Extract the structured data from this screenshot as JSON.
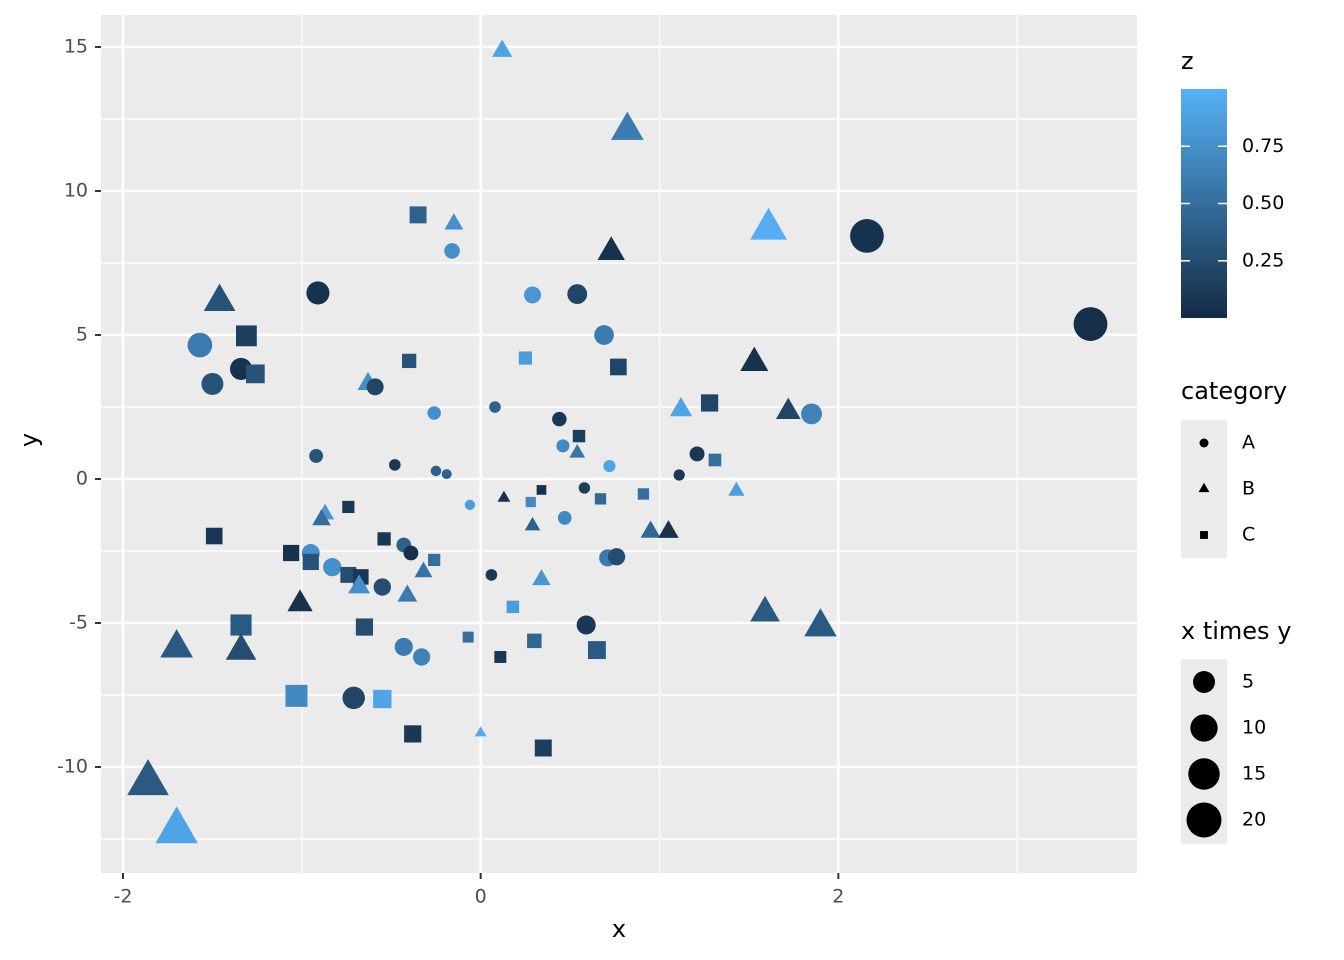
{
  "chart_data": {
    "type": "scatter",
    "xlabel": "x",
    "ylabel": "y",
    "xlim": [
      -2.123,
      3.67
    ],
    "ylim": [
      -13.68,
      16.11
    ],
    "xticks": [
      -2,
      0,
      2
    ],
    "yticks": [
      15,
      10,
      5,
      0,
      -5,
      -10
    ],
    "xminor": [
      -1,
      1,
      3
    ],
    "yminor": [
      12.5,
      7.5,
      2.5,
      -2.5,
      -7.5,
      -12.5
    ],
    "grid": true,
    "x": [
      0.12,
      0.82,
      1.61,
      2.16,
      3.41,
      -0.35,
      -0.15,
      -0.16,
      0.73,
      -0.91,
      -1.46,
      0.29,
      0.54,
      -1.31,
      0.69,
      -1.57,
      -0.4,
      0.25,
      1.53,
      -1.34,
      -1.26,
      0.77,
      -1.5,
      -0.63,
      -0.59,
      1.28,
      1.12,
      1.72,
      1.85,
      -0.26,
      0.08,
      0.44,
      0.55,
      0.46,
      0.54,
      1.21,
      1.31,
      -0.92,
      -0.48,
      -0.25,
      -0.19,
      0.72,
      1.11,
      1.43,
      0.34,
      0.58,
      0.13,
      0.91,
      0.67,
      -0.06,
      0.28,
      -0.74,
      -0.87,
      -0.89,
      0.29,
      0.47,
      0.95,
      1.05,
      -1.49,
      -0.54,
      -0.43,
      -0.39,
      -1.06,
      -0.95,
      -0.95,
      -0.26,
      0.71,
      0.76,
      -0.83,
      -0.74,
      -0.67,
      -0.32,
      0.06,
      -0.55,
      -0.68,
      0.34,
      -1.01,
      -0.41,
      0.18,
      1.59,
      1.9,
      -1.34,
      -0.65,
      0.59,
      -1.7,
      -1.34,
      -0.07,
      0.3,
      0.65,
      -0.43,
      -0.33,
      0.11,
      -1.03,
      -0.71,
      -0.55,
      0.0,
      -0.38,
      0.35,
      -1.86,
      -1.7
    ],
    "y": [
      14.86,
      12.1,
      8.68,
      8.44,
      5.38,
      9.17,
      8.85,
      7.92,
      7.88,
      6.46,
      6.15,
      6.39,
      6.42,
      4.97,
      5.0,
      4.65,
      4.1,
      4.2,
      4.03,
      3.82,
      3.65,
      3.89,
      3.3,
      3.3,
      3.2,
      2.64,
      2.4,
      2.33,
      2.26,
      2.29,
      2.5,
      2.08,
      1.49,
      1.15,
      0.9,
      0.87,
      0.66,
      0.8,
      0.49,
      0.28,
      0.17,
      0.45,
      0.14,
      -0.42,
      -0.38,
      -0.31,
      -0.66,
      -0.52,
      -0.69,
      -0.9,
      -0.8,
      -0.97,
      -1.22,
      -1.42,
      -1.63,
      -1.35,
      -1.84,
      -1.84,
      -1.98,
      -2.08,
      -2.29,
      -2.57,
      -2.57,
      -2.57,
      -2.88,
      -2.81,
      -2.74,
      -2.7,
      -3.06,
      -3.33,
      -3.4,
      -3.23,
      -3.33,
      -3.75,
      -3.75,
      -3.5,
      -4.34,
      -4.06,
      -4.44,
      -4.65,
      -5.14,
      -5.07,
      -5.14,
      -5.07,
      -5.87,
      -5.97,
      -5.49,
      -5.62,
      -5.94,
      -5.83,
      -6.18,
      -6.18,
      -7.53,
      -7.6,
      -7.64,
      -8.82,
      -8.85,
      -9.34,
      -10.56,
      -12.22
    ],
    "category": [
      "B",
      "B",
      "B",
      "A",
      "A",
      "C",
      "B",
      "A",
      "B",
      "A",
      "B",
      "A",
      "A",
      "C",
      "A",
      "A",
      "C",
      "C",
      "B",
      "A",
      "C",
      "C",
      "A",
      "B",
      "A",
      "C",
      "B",
      "B",
      "A",
      "A",
      "A",
      "A",
      "C",
      "A",
      "B",
      "A",
      "C",
      "A",
      "A",
      "A",
      "A",
      "A",
      "A",
      "B",
      "C",
      "A",
      "B",
      "C",
      "C",
      "A",
      "C",
      "C",
      "B",
      "B",
      "B",
      "A",
      "B",
      "B",
      "C",
      "C",
      "A",
      "A",
      "C",
      "A",
      "C",
      "C",
      "A",
      "A",
      "A",
      "C",
      "C",
      "B",
      "A",
      "A",
      "B",
      "B",
      "B",
      "B",
      "C",
      "B",
      "B",
      "C",
      "C",
      "A",
      "B",
      "B",
      "C",
      "C",
      "C",
      "A",
      "A",
      "C",
      "C",
      "A",
      "C",
      "B",
      "C",
      "C",
      "B",
      "B"
    ],
    "z": [
      0.9,
      0.6,
      0.98,
      0.05,
      0.03,
      0.4,
      0.75,
      0.75,
      0.05,
      0.05,
      0.3,
      0.8,
      0.2,
      0.15,
      0.6,
      0.6,
      0.3,
      0.85,
      0.05,
      0.05,
      0.3,
      0.2,
      0.3,
      0.75,
      0.2,
      0.2,
      0.9,
      0.2,
      0.65,
      0.75,
      0.4,
      0.1,
      0.15,
      0.7,
      0.55,
      0.1,
      0.5,
      0.3,
      0.1,
      0.4,
      0.4,
      0.9,
      0.1,
      0.85,
      0.05,
      0.15,
      0.05,
      0.5,
      0.45,
      0.85,
      0.7,
      0.1,
      0.8,
      0.5,
      0.4,
      0.7,
      0.45,
      0.05,
      0.1,
      0.1,
      0.4,
      0.05,
      0.05,
      0.75,
      0.3,
      0.5,
      0.6,
      0.25,
      0.75,
      0.25,
      0.1,
      0.55,
      0.1,
      0.25,
      0.75,
      0.8,
      0.05,
      0.6,
      0.85,
      0.35,
      0.35,
      0.35,
      0.25,
      0.1,
      0.35,
      0.25,
      0.5,
      0.45,
      0.35,
      0.6,
      0.65,
      0.1,
      0.7,
      0.2,
      0.9,
      0.95,
      0.1,
      0.15,
      0.35,
      0.9
    ],
    "size": [
      1.8,
      9.9,
      14,
      18.2,
      18.3,
      3.2,
      1.3,
      1.3,
      5.7,
      5.9,
      9,
      1.9,
      3.5,
      6.5,
      3.4,
      7.3,
      1.6,
      1.1,
      6.2,
      5.1,
      4.6,
      3.0,
      5,
      2.1,
      1.9,
      3.4,
      2.7,
      4.0,
      4.2,
      0.6,
      0.2,
      0.9,
      0.8,
      0.5,
      0.5,
      1.05,
      0.9,
      0.7,
      0.2,
      0.07,
      0.03,
      0.3,
      0.15,
      0.6,
      0.13,
      0.18,
      0.08,
      0.47,
      0.46,
      0.05,
      0.22,
      0.72,
      1.06,
      1.26,
      0.47,
      0.64,
      1.74,
      1.93,
      2.95,
      1.12,
      0.98,
      1.0,
      2.7,
      2.4,
      2.7,
      0.73,
      1.94,
      2.04,
      2.55,
      2.5,
      2.26,
      1.05,
      0.2,
      2.07,
      2.53,
      1.2,
      4.37,
      1.68,
      0.82,
      7.42,
      9.77,
      6.81,
      3.36,
      2.98,
      9.96,
      8.03,
      0.37,
      1.7,
      3.89,
      2.48,
      2.03,
      0.65,
      7.74,
      5.4,
      4.23,
      0.02,
      3.37,
      3.23,
      19.7,
      20.7
    ],
    "color_legend": {
      "title": "z",
      "colors": [
        "#132B43",
        "#56B1F7"
      ],
      "lim": [
        0,
        1
      ],
      "ticks": [
        0.25,
        {
          "value": 0.5,
          "label": "0.50"
        },
        0.75
      ]
    },
    "shape_legend": {
      "title": "category",
      "levels": [
        "A",
        "B",
        "C"
      ]
    },
    "size_legend": {
      "title": "x times y",
      "ticks": [
        5,
        10,
        15,
        20
      ]
    }
  }
}
